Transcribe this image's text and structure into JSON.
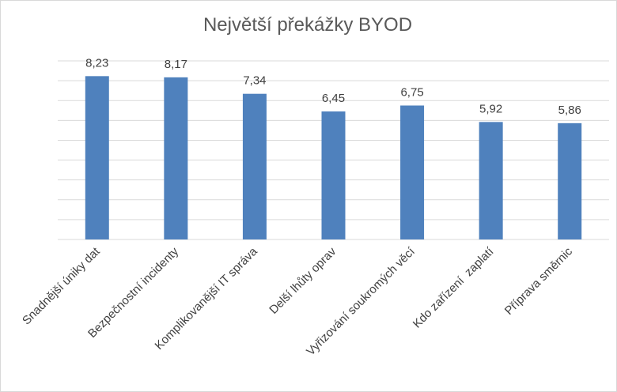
{
  "chart_data": {
    "type": "bar",
    "title": "Největší překážky BYOD",
    "categories": [
      "Snadnější úniky dat",
      "Bezpečnostní incidenty",
      "Komplikovanější IT správa",
      "Delší lhůty oprav",
      "Vyřizování soukromých věcí",
      "Kdo zařízení  zaplatí",
      "Příprava směrnic"
    ],
    "values": [
      8.23,
      8.17,
      7.34,
      6.45,
      6.75,
      5.92,
      5.86
    ],
    "value_labels": [
      "8,23",
      "8,17",
      "7,34",
      "6,45",
      "6,75",
      "5,92",
      "5,86"
    ],
    "ylim": [
      0,
      9
    ],
    "gridlines": true,
    "legend": "none",
    "bar_color": "#4f81bd",
    "grid_color": "#d9d9d9"
  }
}
